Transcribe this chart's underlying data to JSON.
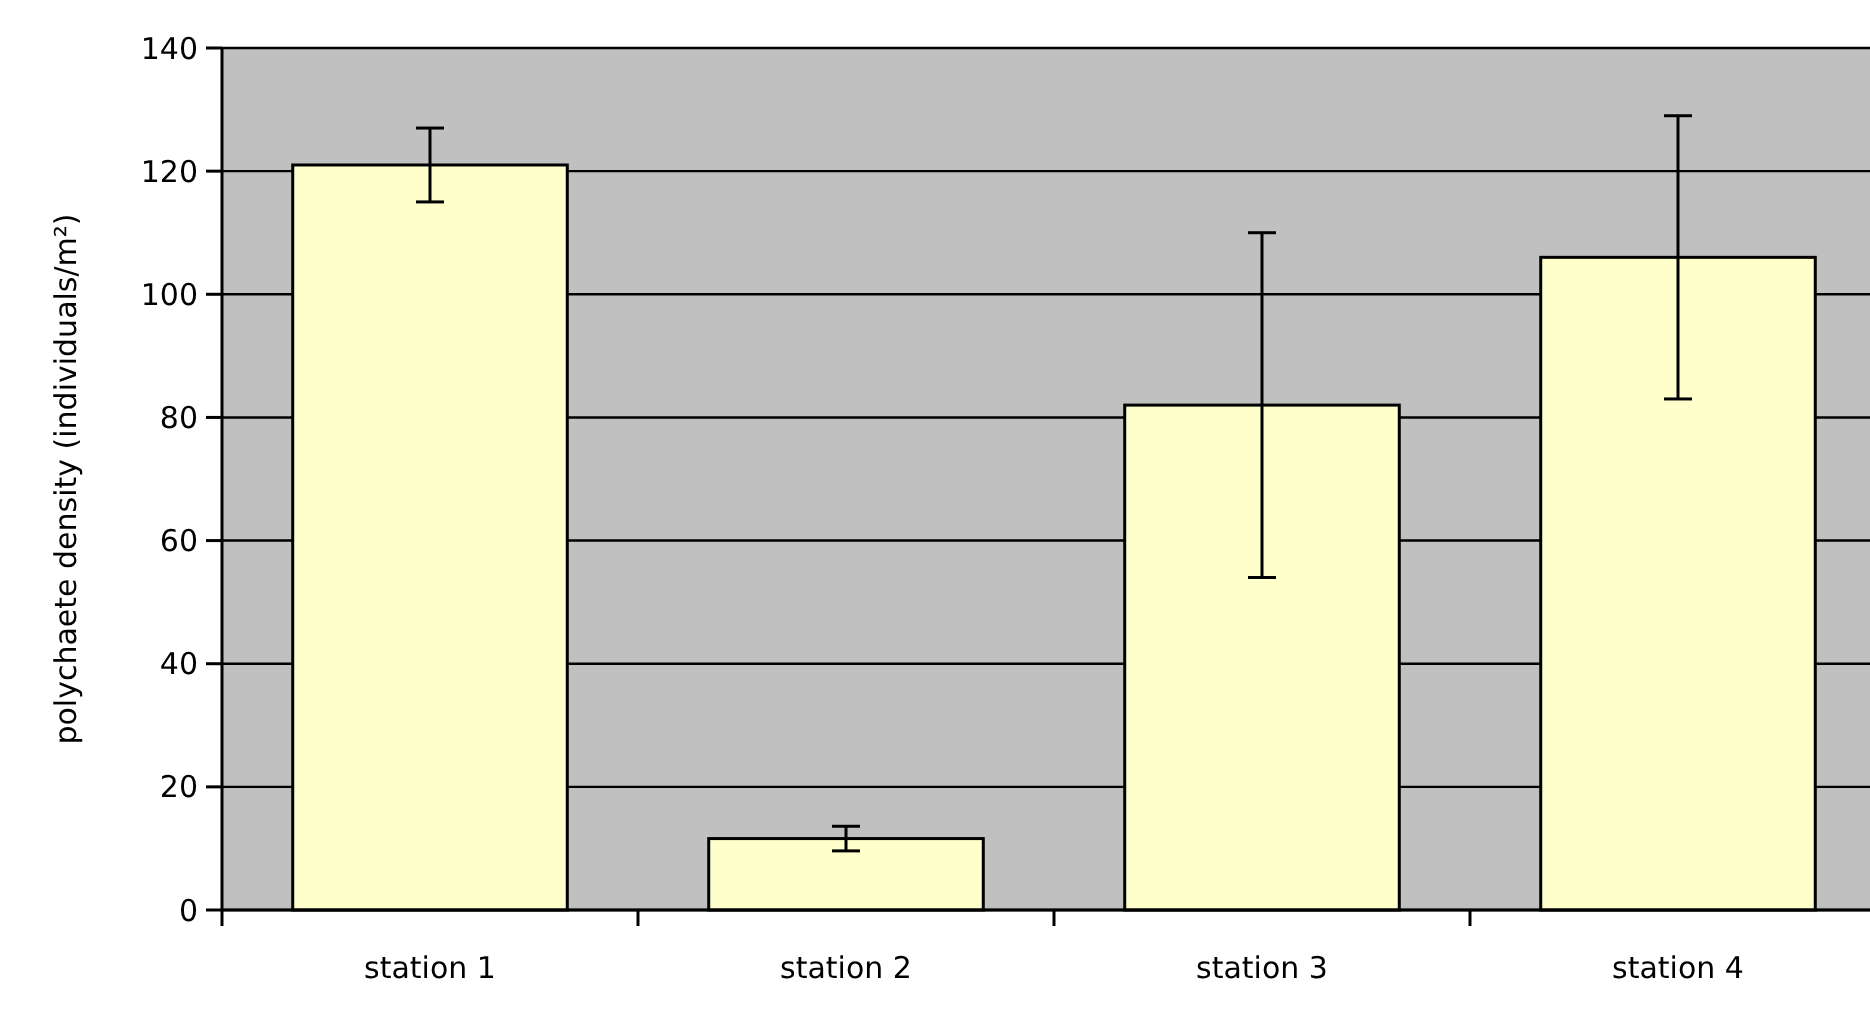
{
  "chart_data": {
    "type": "bar",
    "ylabel": "polychaete density (individuals/m²)",
    "categories": [
      "station 1",
      "station 2",
      "station 3",
      "station 4"
    ],
    "values": [
      121,
      11.6,
      82,
      106
    ],
    "errors": [
      6,
      2,
      28,
      23
    ],
    "color": "#ffffcc",
    "ylim": [
      0,
      140
    ],
    "yticks": [
      0,
      20,
      40,
      60,
      80,
      100,
      120,
      140
    ],
    "grid": "y"
  }
}
